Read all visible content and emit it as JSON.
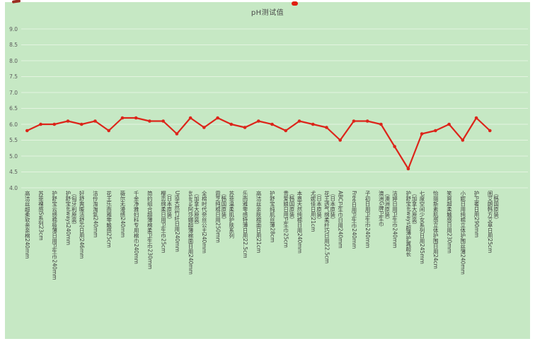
{
  "window": {
    "background": "#ffffff"
  },
  "chart_data": {
    "type": "line",
    "title": "pH测试值",
    "xlabel": "",
    "ylabel": "",
    "ylim": [
      4.0,
      9.0
    ],
    "ytick_step": 0.5,
    "yticks": [
      "4.0",
      "4.5",
      "5.0",
      "5.5",
      "6.0",
      "6.5",
      "7.0",
      "7.5",
      "8.0",
      "8.5",
      "9.0"
    ],
    "grid": true,
    "legend": "none",
    "categories": [
      "高洁丝超柔软亲亲棉240mm",
      "苏菲裸感S系列23cm",
      "护舒宝云感棉极薄日用卫生巾240mm",
      "护舒宝always240mm（匈牙利原装）",
      "好舒爽暖洁舒芯日用246mm",
      "洁伶淘淘氧240mm",
      "花王乐而雅零触感25cm",
      "薇尔无漫感240mm",
      "千金净雅妇科专用棉巾240mm",
      "简约组合超薄棉柔卫生巾230mm",
      "樱恋绵柔日用卫生巾25cm（日本原装）",
      "U适天然竹纤日用240mm",
      "asana阿莎娜超薄棉面日用240mm（加拿大原装）",
      "全棉时代奈丝公主240mm",
      "恩芝纯棉日用250mm（韩国原装）",
      "苏菲温柔肌护肤系列",
      "乐而雅零感特薄日用22.5cm",
      "高洁丝亲肤棉面日用21cm",
      "护舒宝纯肌丝薄28cm",
      "贵爱娘日用卫生巾25cm（韩国原装）",
      "本恩天然纯棉日用240mm",
      "尤妮佳日用21cm（日本原装）",
      "花王透气绵柔纤巧日用22.5cm（日本原装）",
      "ABC卫生巾日用240mm",
      "Free日用卫生巾240mm",
      "子初日用卫生巾240mm",
      "澳洲G牌卫生巾（澳洲原装）",
      "洁婷日用卫生巾240mm",
      "护舒宝always超薄护翼超长（加拿大原装）",
      "七度空间少女系列日用245mm",
      "怡丽新素肌感立体护围日用24cm",
      "笑爽超柔触感日用230mm",
      "小妮日用纯棉立体护围丝薄240mm",
      "护卫者日用290mm",
      "闺艾朗韩方艾草日用25cm（韩国原装）"
    ],
    "values": [
      5.8,
      6.0,
      6.0,
      6.1,
      6.0,
      6.1,
      5.8,
      6.2,
      6.2,
      6.1,
      6.1,
      5.7,
      6.2,
      5.9,
      6.2,
      6.0,
      5.9,
      6.1,
      6.0,
      5.8,
      6.1,
      6.0,
      5.9,
      5.5,
      6.1,
      6.1,
      6.0,
      5.3,
      4.6,
      5.7,
      5.8,
      6.0,
      5.5,
      6.2,
      5.8
    ]
  },
  "colors": {
    "background": "#c6e8c4",
    "grid": "#e3f4e0",
    "line": "#dc251a",
    "marker": "#dc251a",
    "title": "#4a4a4a",
    "tick": "#5b5b5b",
    "label": "#3d3d3d"
  }
}
